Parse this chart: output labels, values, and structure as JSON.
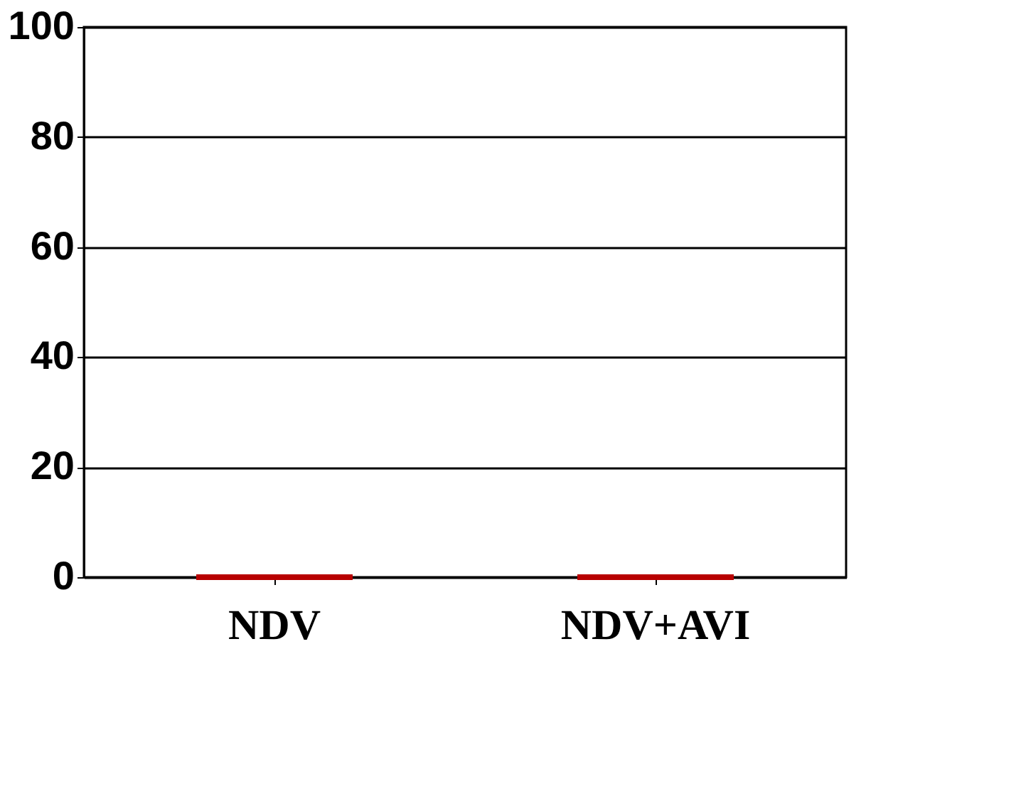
{
  "chart_data": {
    "type": "bar",
    "categories": [
      "NDV",
      "NDV+AVI"
    ],
    "values": [
      0,
      0
    ],
    "color": "#b80000",
    "ylim": [
      0,
      100
    ],
    "yticks": [
      0,
      20,
      40,
      60,
      80,
      100
    ],
    "grid": "y"
  }
}
